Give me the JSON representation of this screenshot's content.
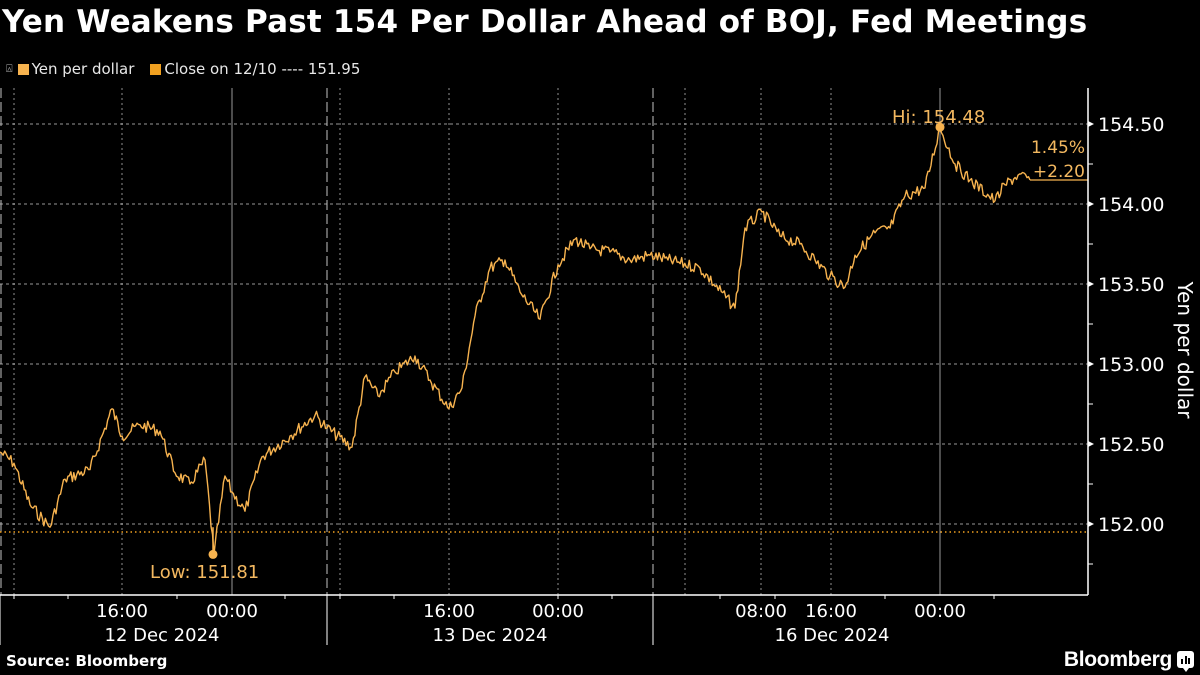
{
  "header": {
    "title": "Yen Weakens Past 154 Per Dollar Ahead of BOJ, Fed Meetings"
  },
  "legend": [
    {
      "label": "Yen per dollar",
      "color": "#f7b34f"
    },
    {
      "label": "Close on 12/10 ---- 151.95",
      "color": "#f0a020"
    }
  ],
  "footer": {
    "source": "Source: Bloomberg",
    "brand": "Bloomberg"
  },
  "colors": {
    "background": "#000000",
    "line": "#f7b34f",
    "annotation": "#f3b860",
    "grid": "#bfbfbf",
    "axis": "#ffffff"
  },
  "annotations": {
    "high": "Hi: 154.48",
    "low": "Low: 151.81",
    "pct_change": "1.45%",
    "abs_change": "+2.20"
  },
  "chart_data": {
    "type": "line",
    "title": "Yen Weakens Past 154 Per Dollar Ahead of BOJ, Fed Meetings",
    "xlabel": "",
    "ylabel": "Yen per dollar",
    "ylim": [
      151.6,
      154.75
    ],
    "y_ticks": [
      "152.00",
      "152.50",
      "153.00",
      "153.50",
      "154.00",
      "154.50"
    ],
    "x_tick_labels": [
      {
        "time": "16:00",
        "date": "12 Dec 2024"
      },
      {
        "time": "00:00",
        "date": ""
      },
      {
        "time": "16:00",
        "date": "13 Dec 2024"
      },
      {
        "time": "00:00",
        "date": ""
      },
      {
        "time": "08:00",
        "date": ""
      },
      {
        "time": "16:00",
        "date": "16 Dec 2024"
      },
      {
        "time": "00:00",
        "date": ""
      }
    ],
    "date_labels": [
      "12 Dec 2024",
      "13 Dec 2024",
      "16 Dec 2024"
    ],
    "grid": true,
    "legend_position": "top-left",
    "reference_line": {
      "label": "Close on 12/10",
      "value": 151.95
    },
    "high": {
      "label": "Hi",
      "value": 154.48
    },
    "low": {
      "label": "Low",
      "value": 151.81
    },
    "change": {
      "percent": "1.45%",
      "absolute": "+2.20"
    },
    "series": [
      {
        "name": "Yen per dollar",
        "points": [
          {
            "t": "12 Dec 10:00",
            "v": 152.45
          },
          {
            "t": "12 Dec 11:00",
            "v": 152.38
          },
          {
            "t": "12 Dec 12:00",
            "v": 152.12
          },
          {
            "t": "12 Dec 13:00",
            "v": 151.98
          },
          {
            "t": "12 Dec 14:00",
            "v": 152.28
          },
          {
            "t": "12 Dec 15:00",
            "v": 152.34
          },
          {
            "t": "12 Dec 15:30",
            "v": 152.72
          },
          {
            "t": "12 Dec 16:00",
            "v": 152.55
          },
          {
            "t": "12 Dec 17:00",
            "v": 152.62
          },
          {
            "t": "12 Dec 18:00",
            "v": 152.58
          },
          {
            "t": "12 Dec 19:00",
            "v": 152.32
          },
          {
            "t": "12 Dec 20:00",
            "v": 152.25
          },
          {
            "t": "12 Dec 21:00",
            "v": 152.4
          },
          {
            "t": "12 Dec 22:00",
            "v": 151.81
          },
          {
            "t": "12 Dec 23:00",
            "v": 152.3
          },
          {
            "t": "13 Dec 00:00",
            "v": 152.2
          },
          {
            "t": "13 Dec 01:00",
            "v": 152.08
          },
          {
            "t": "13 Dec 02:00",
            "v": 152.42
          },
          {
            "t": "13 Dec 04:00",
            "v": 152.55
          },
          {
            "t": "13 Dec 06:00",
            "v": 152.68
          },
          {
            "t": "13 Dec 07:00",
            "v": 152.6
          },
          {
            "t": "13 Dec 08:00",
            "v": 152.48
          },
          {
            "t": "13 Dec 09:00",
            "v": 152.92
          },
          {
            "t": "13 Dec 10:00",
            "v": 152.8
          },
          {
            "t": "13 Dec 11:00",
            "v": 152.95
          },
          {
            "t": "13 Dec 12:00",
            "v": 153.05
          },
          {
            "t": "13 Dec 13:00",
            "v": 152.9
          },
          {
            "t": "13 Dec 14:00",
            "v": 152.72
          },
          {
            "t": "13 Dec 15:00",
            "v": 152.85
          },
          {
            "t": "13 Dec 16:00",
            "v": 153.3
          },
          {
            "t": "13 Dec 17:00",
            "v": 153.6
          },
          {
            "t": "13 Dec 18:00",
            "v": 153.65
          },
          {
            "t": "13 Dec 19:00",
            "v": 153.45
          },
          {
            "t": "13 Dec 20:00",
            "v": 153.28
          },
          {
            "t": "13 Dec 21:00",
            "v": 153.62
          },
          {
            "t": "13 Dec 22:00",
            "v": 153.78
          },
          {
            "t": "13 Dec 23:00",
            "v": 153.72
          },
          {
            "t": "16 Dec 00:00",
            "v": 153.7
          },
          {
            "t": "16 Dec 02:00",
            "v": 153.65
          },
          {
            "t": "16 Dec 04:00",
            "v": 153.68
          },
          {
            "t": "16 Dec 06:00",
            "v": 153.65
          },
          {
            "t": "16 Dec 07:00",
            "v": 153.6
          },
          {
            "t": "16 Dec 08:00",
            "v": 153.35
          },
          {
            "t": "16 Dec 09:00",
            "v": 153.85
          },
          {
            "t": "16 Dec 10:00",
            "v": 153.95
          },
          {
            "t": "16 Dec 11:00",
            "v": 153.8
          },
          {
            "t": "16 Dec 12:00",
            "v": 153.75
          },
          {
            "t": "16 Dec 13:00",
            "v": 153.65
          },
          {
            "t": "16 Dec 14:00",
            "v": 153.55
          },
          {
            "t": "16 Dec 15:00",
            "v": 153.48
          },
          {
            "t": "16 Dec 16:00",
            "v": 153.68
          },
          {
            "t": "16 Dec 17:00",
            "v": 153.82
          },
          {
            "t": "16 Dec 18:00",
            "v": 153.85
          },
          {
            "t": "16 Dec 19:00",
            "v": 154.05
          },
          {
            "t": "16 Dec 20:00",
            "v": 154.1
          },
          {
            "t": "16 Dec 21:00",
            "v": 154.48
          },
          {
            "t": "16 Dec 22:00",
            "v": 154.25
          },
          {
            "t": "16 Dec 23:00",
            "v": 154.15
          },
          {
            "t": "17 Dec 00:00",
            "v": 154.02
          },
          {
            "t": "17 Dec 01:00",
            "v": 154.12
          },
          {
            "t": "17 Dec 02:00",
            "v": 154.18
          },
          {
            "t": "17 Dec 03:00",
            "v": 154.15
          }
        ]
      }
    ]
  }
}
